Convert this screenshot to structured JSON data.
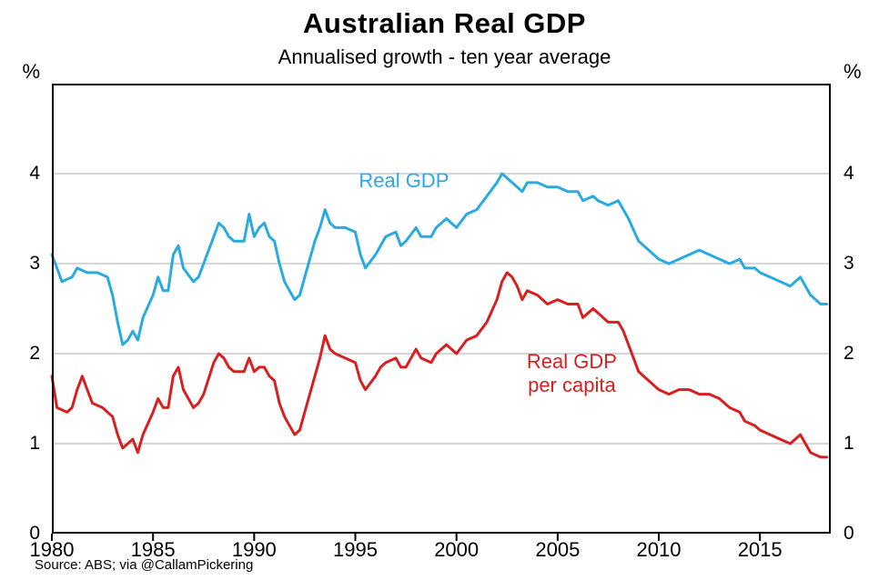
{
  "header": {
    "title": "Australian Real GDP",
    "subtitle": "Annualised growth - ten year average"
  },
  "footer": {
    "source": "Source: ABS; via @CallamPickering"
  },
  "chart_data": {
    "type": "line",
    "title": "Australian Real GDP",
    "subtitle": "Annualised growth - ten year average",
    "xlabel": "",
    "ylabel": "%",
    "xlim": [
      1980,
      2018.5
    ],
    "ylim": [
      0,
      5
    ],
    "y_gridlines": [
      1,
      2,
      3,
      4
    ],
    "y_ticks": [
      0,
      1,
      2,
      3,
      4
    ],
    "x_ticks": [
      1980,
      1985,
      1990,
      1995,
      2000,
      2005,
      2010,
      2015
    ],
    "grid": true,
    "legend_position": "inline-annotations",
    "colors": {
      "real_gdp": "#29ABE2",
      "real_gdp_per_capita": "#D7201F",
      "gridline": "#ADADAD",
      "border": "#000000"
    },
    "series": [
      {
        "name": "Real GDP",
        "color": "#29ABE2",
        "points": [
          [
            1980,
            3.1
          ],
          [
            1980.25,
            2.95
          ],
          [
            1980.5,
            2.8
          ],
          [
            1981,
            2.85
          ],
          [
            1981.25,
            2.95
          ],
          [
            1981.75,
            2.9
          ],
          [
            1982.25,
            2.9
          ],
          [
            1982.75,
            2.85
          ],
          [
            1983,
            2.65
          ],
          [
            1983.25,
            2.35
          ],
          [
            1983.5,
            2.1
          ],
          [
            1983.75,
            2.15
          ],
          [
            1984,
            2.25
          ],
          [
            1984.25,
            2.15
          ],
          [
            1984.5,
            2.4
          ],
          [
            1985,
            2.65
          ],
          [
            1985.25,
            2.85
          ],
          [
            1985.5,
            2.7
          ],
          [
            1985.75,
            2.7
          ],
          [
            1986,
            3.1
          ],
          [
            1986.25,
            3.2
          ],
          [
            1986.5,
            2.95
          ],
          [
            1987,
            2.8
          ],
          [
            1987.25,
            2.85
          ],
          [
            1987.5,
            3.0
          ],
          [
            1988,
            3.3
          ],
          [
            1988.25,
            3.45
          ],
          [
            1988.5,
            3.4
          ],
          [
            1988.75,
            3.3
          ],
          [
            1989,
            3.25
          ],
          [
            1989.5,
            3.25
          ],
          [
            1989.75,
            3.55
          ],
          [
            1990,
            3.3
          ],
          [
            1990.25,
            3.4
          ],
          [
            1990.5,
            3.45
          ],
          [
            1990.75,
            3.3
          ],
          [
            1991,
            3.25
          ],
          [
            1991.25,
            3.0
          ],
          [
            1991.5,
            2.8
          ],
          [
            1991.75,
            2.7
          ],
          [
            1992,
            2.6
          ],
          [
            1992.25,
            2.65
          ],
          [
            1992.5,
            2.85
          ],
          [
            1993,
            3.25
          ],
          [
            1993.25,
            3.4
          ],
          [
            1993.5,
            3.6
          ],
          [
            1993.75,
            3.45
          ],
          [
            1994,
            3.4
          ],
          [
            1994.5,
            3.4
          ],
          [
            1995,
            3.35
          ],
          [
            1995.25,
            3.1
          ],
          [
            1995.5,
            2.95
          ],
          [
            1996,
            3.1
          ],
          [
            1996.25,
            3.2
          ],
          [
            1996.5,
            3.3
          ],
          [
            1997,
            3.35
          ],
          [
            1997.25,
            3.2
          ],
          [
            1997.5,
            3.25
          ],
          [
            1998,
            3.4
          ],
          [
            1998.25,
            3.3
          ],
          [
            1998.75,
            3.3
          ],
          [
            1999,
            3.4
          ],
          [
            1999.5,
            3.5
          ],
          [
            2000,
            3.4
          ],
          [
            2000.5,
            3.55
          ],
          [
            2001,
            3.6
          ],
          [
            2001.5,
            3.75
          ],
          [
            2002,
            3.9
          ],
          [
            2002.25,
            4.0
          ],
          [
            2002.5,
            3.95
          ],
          [
            2003,
            3.85
          ],
          [
            2003.25,
            3.8
          ],
          [
            2003.5,
            3.9
          ],
          [
            2004,
            3.9
          ],
          [
            2004.5,
            3.85
          ],
          [
            2005,
            3.85
          ],
          [
            2005.5,
            3.8
          ],
          [
            2006,
            3.8
          ],
          [
            2006.25,
            3.7
          ],
          [
            2006.75,
            3.75
          ],
          [
            2007,
            3.7
          ],
          [
            2007.5,
            3.65
          ],
          [
            2008,
            3.7
          ],
          [
            2008.25,
            3.6
          ],
          [
            2008.5,
            3.5
          ],
          [
            2009,
            3.25
          ],
          [
            2009.5,
            3.15
          ],
          [
            2010,
            3.05
          ],
          [
            2010.5,
            3.0
          ],
          [
            2011,
            3.05
          ],
          [
            2011.5,
            3.1
          ],
          [
            2012,
            3.15
          ],
          [
            2012.5,
            3.1
          ],
          [
            2013,
            3.05
          ],
          [
            2013.5,
            3.0
          ],
          [
            2014,
            3.05
          ],
          [
            2014.25,
            2.95
          ],
          [
            2014.75,
            2.95
          ],
          [
            2015,
            2.9
          ],
          [
            2015.5,
            2.85
          ],
          [
            2016,
            2.8
          ],
          [
            2016.5,
            2.75
          ],
          [
            2017,
            2.85
          ],
          [
            2017.25,
            2.75
          ],
          [
            2017.5,
            2.65
          ],
          [
            2018,
            2.55
          ],
          [
            2018.3,
            2.55
          ]
        ]
      },
      {
        "name": "Real GDP per capita",
        "color": "#D7201F",
        "points": [
          [
            1980,
            1.75
          ],
          [
            1980.25,
            1.4
          ],
          [
            1980.75,
            1.35
          ],
          [
            1981,
            1.4
          ],
          [
            1981.25,
            1.6
          ],
          [
            1981.5,
            1.75
          ],
          [
            1981.75,
            1.6
          ],
          [
            1982,
            1.45
          ],
          [
            1982.5,
            1.4
          ],
          [
            1983,
            1.3
          ],
          [
            1983.25,
            1.1
          ],
          [
            1983.5,
            0.95
          ],
          [
            1983.75,
            1.0
          ],
          [
            1984,
            1.05
          ],
          [
            1984.25,
            0.9
          ],
          [
            1984.5,
            1.1
          ],
          [
            1985,
            1.35
          ],
          [
            1985.25,
            1.5
          ],
          [
            1985.5,
            1.4
          ],
          [
            1985.75,
            1.4
          ],
          [
            1986,
            1.75
          ],
          [
            1986.25,
            1.85
          ],
          [
            1986.5,
            1.6
          ],
          [
            1987,
            1.4
          ],
          [
            1987.25,
            1.45
          ],
          [
            1987.5,
            1.55
          ],
          [
            1988,
            1.9
          ],
          [
            1988.25,
            2.0
          ],
          [
            1988.5,
            1.95
          ],
          [
            1988.75,
            1.85
          ],
          [
            1989,
            1.8
          ],
          [
            1989.5,
            1.8
          ],
          [
            1989.75,
            1.95
          ],
          [
            1990,
            1.8
          ],
          [
            1990.25,
            1.85
          ],
          [
            1990.5,
            1.85
          ],
          [
            1990.75,
            1.75
          ],
          [
            1991,
            1.7
          ],
          [
            1991.25,
            1.45
          ],
          [
            1991.5,
            1.3
          ],
          [
            1991.75,
            1.2
          ],
          [
            1992,
            1.1
          ],
          [
            1992.25,
            1.15
          ],
          [
            1992.5,
            1.35
          ],
          [
            1993,
            1.75
          ],
          [
            1993.25,
            1.95
          ],
          [
            1993.5,
            2.2
          ],
          [
            1993.75,
            2.05
          ],
          [
            1994,
            2.0
          ],
          [
            1994.5,
            1.95
          ],
          [
            1995,
            1.9
          ],
          [
            1995.25,
            1.7
          ],
          [
            1995.5,
            1.6
          ],
          [
            1996,
            1.75
          ],
          [
            1996.25,
            1.85
          ],
          [
            1996.5,
            1.9
          ],
          [
            1997,
            1.95
          ],
          [
            1997.25,
            1.85
          ],
          [
            1997.5,
            1.85
          ],
          [
            1998,
            2.05
          ],
          [
            1998.25,
            1.95
          ],
          [
            1998.75,
            1.9
          ],
          [
            1999,
            2.0
          ],
          [
            1999.5,
            2.1
          ],
          [
            2000,
            2.0
          ],
          [
            2000.5,
            2.15
          ],
          [
            2001,
            2.2
          ],
          [
            2001.5,
            2.35
          ],
          [
            2002,
            2.6
          ],
          [
            2002.25,
            2.8
          ],
          [
            2002.5,
            2.9
          ],
          [
            2002.75,
            2.85
          ],
          [
            2003,
            2.75
          ],
          [
            2003.25,
            2.6
          ],
          [
            2003.5,
            2.7
          ],
          [
            2004,
            2.65
          ],
          [
            2004.5,
            2.55
          ],
          [
            2005,
            2.6
          ],
          [
            2005.5,
            2.55
          ],
          [
            2006,
            2.55
          ],
          [
            2006.25,
            2.4
          ],
          [
            2006.75,
            2.5
          ],
          [
            2007,
            2.45
          ],
          [
            2007.5,
            2.35
          ],
          [
            2008,
            2.35
          ],
          [
            2008.25,
            2.25
          ],
          [
            2008.5,
            2.1
          ],
          [
            2009,
            1.8
          ],
          [
            2009.5,
            1.7
          ],
          [
            2010,
            1.6
          ],
          [
            2010.5,
            1.55
          ],
          [
            2011,
            1.6
          ],
          [
            2011.5,
            1.6
          ],
          [
            2012,
            1.55
          ],
          [
            2012.5,
            1.55
          ],
          [
            2013,
            1.5
          ],
          [
            2013.5,
            1.4
          ],
          [
            2014,
            1.35
          ],
          [
            2014.25,
            1.25
          ],
          [
            2014.75,
            1.2
          ],
          [
            2015,
            1.15
          ],
          [
            2015.5,
            1.1
          ],
          [
            2016,
            1.05
          ],
          [
            2016.5,
            1.0
          ],
          [
            2017,
            1.1
          ],
          [
            2017.25,
            1.0
          ],
          [
            2017.5,
            0.9
          ],
          [
            2018,
            0.85
          ],
          [
            2018.3,
            0.85
          ]
        ]
      }
    ],
    "annotations": [
      {
        "text": "Real GDP",
        "x": 1997.4,
        "y": 3.92,
        "color": "#29ABE2"
      },
      {
        "text": "Real GDP\nper capita",
        "x": 2005.7,
        "y": 1.78,
        "color": "#D7201F"
      }
    ]
  }
}
